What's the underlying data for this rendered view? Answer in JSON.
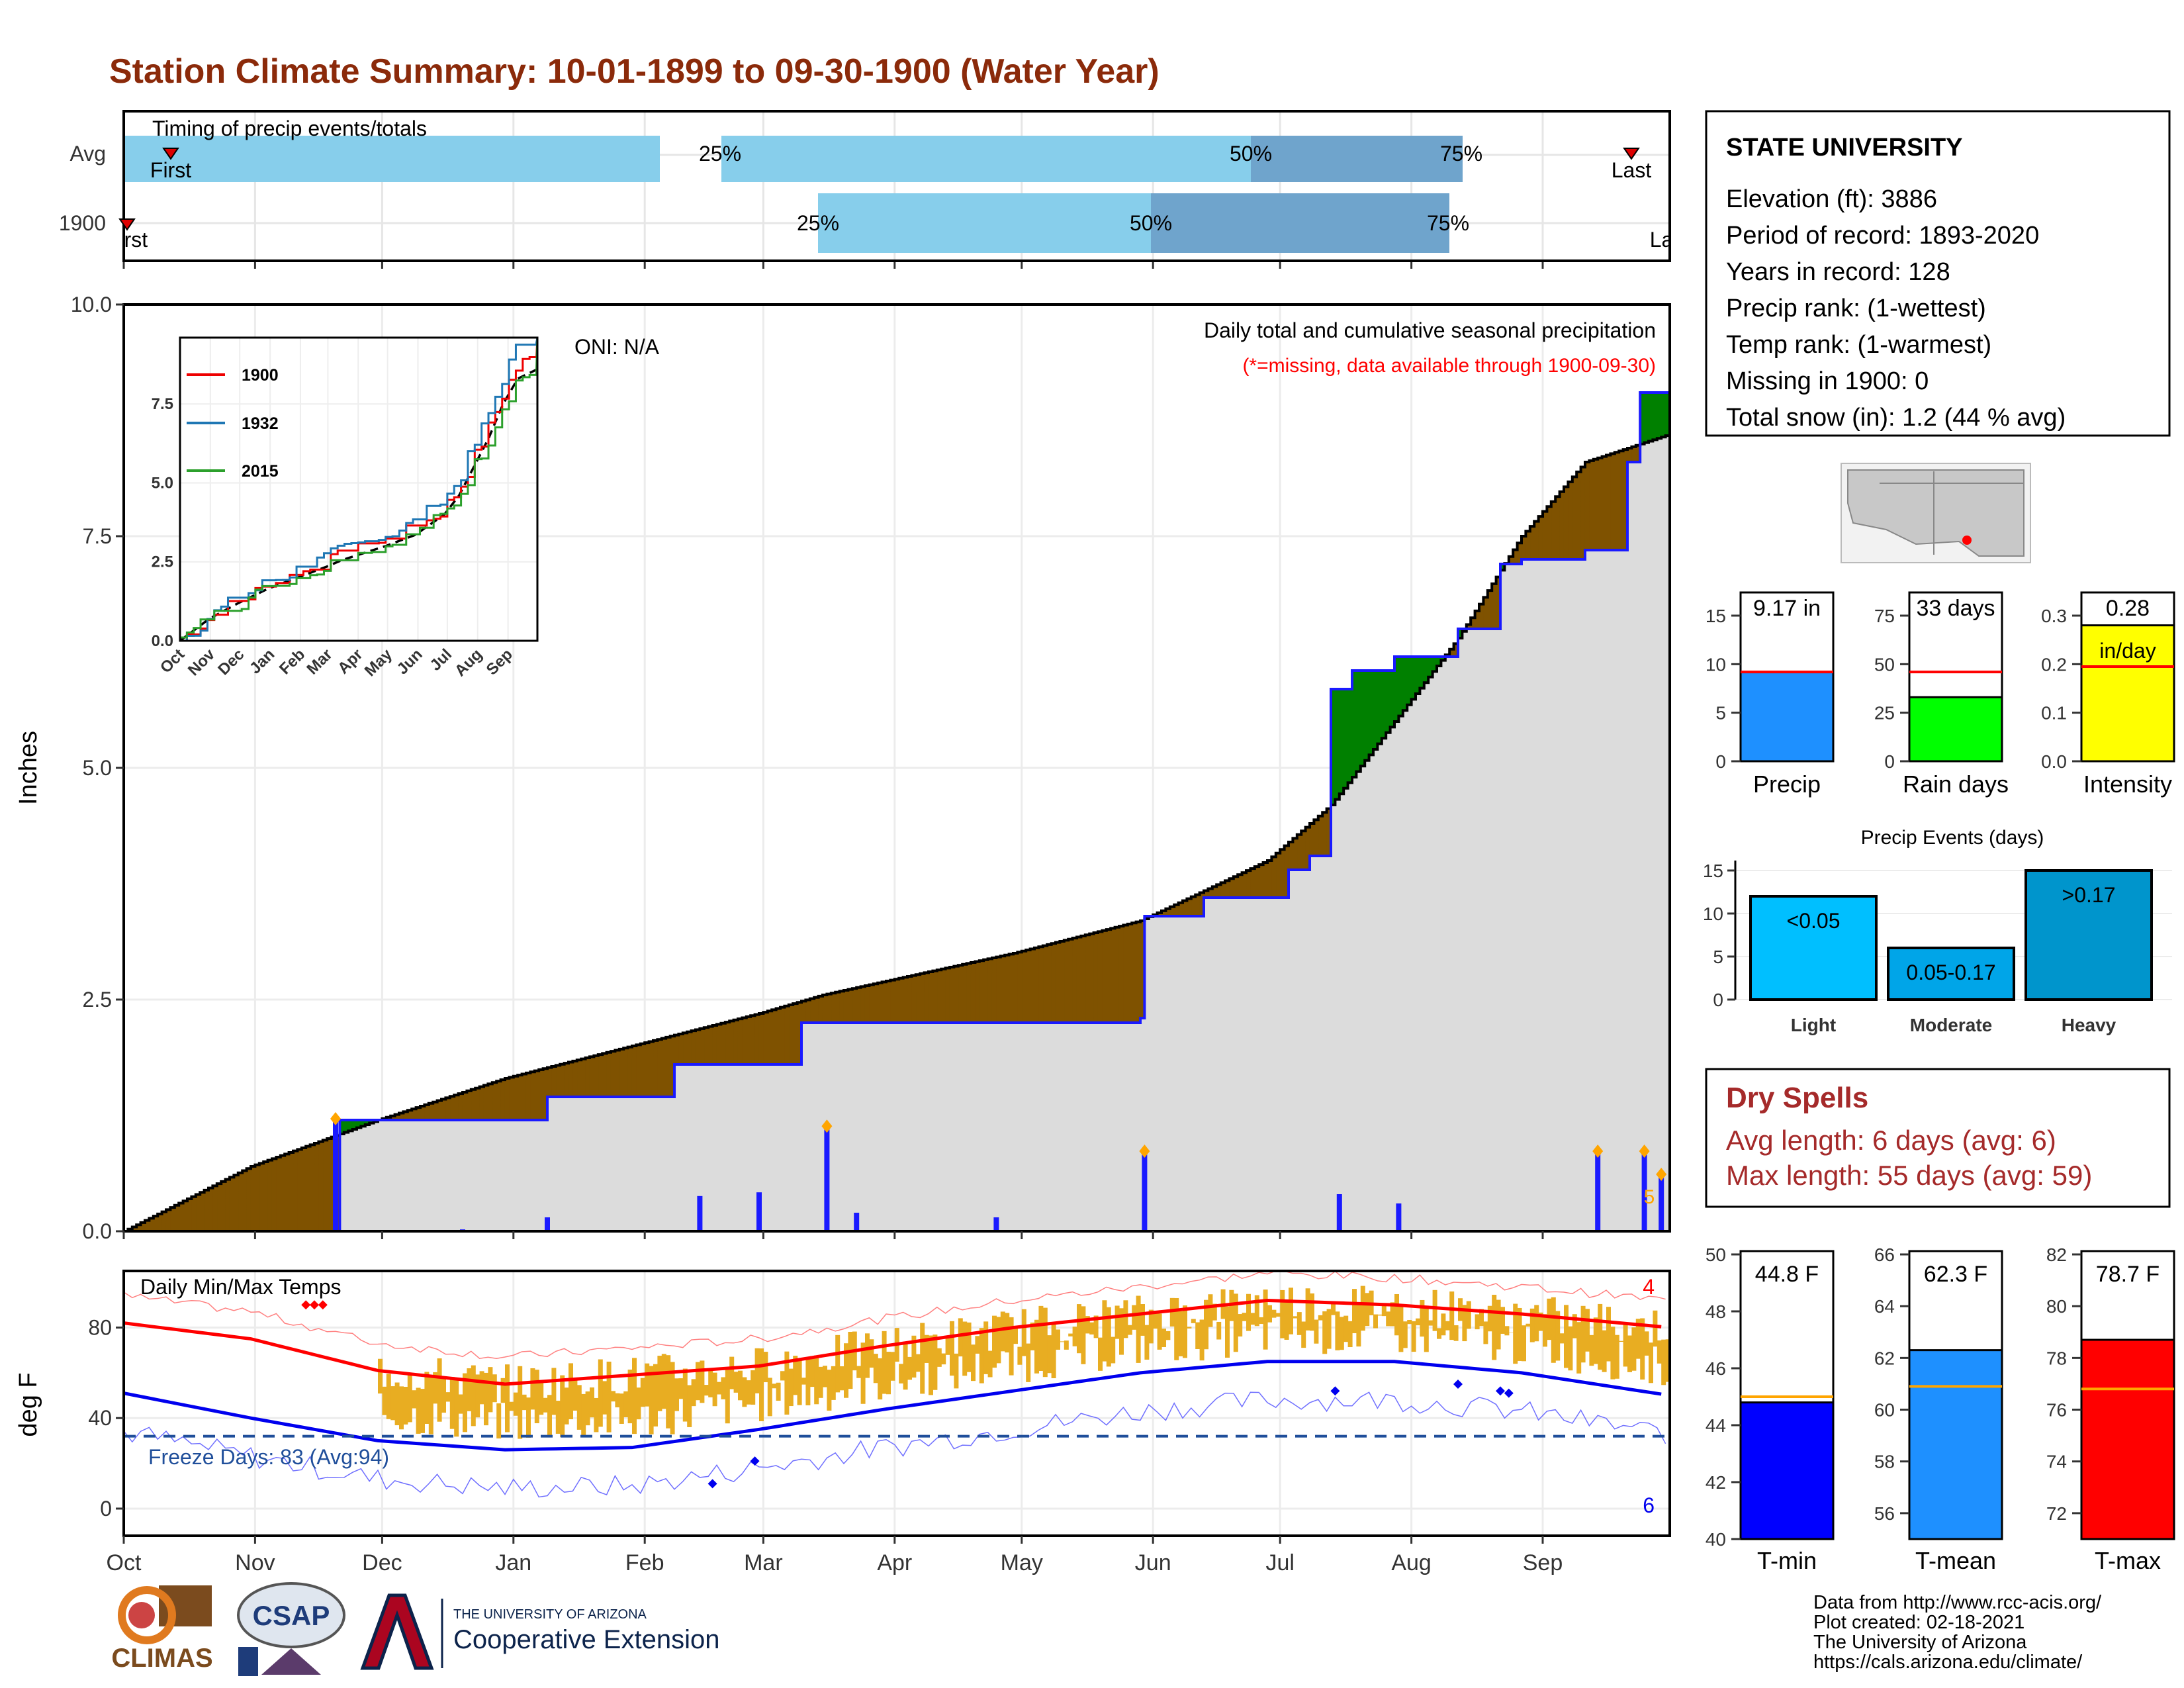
{
  "title": "Station Climate Summary: 10-01-1899 to 09-30-1900 (Water Year)",
  "colors": {
    "title": "#8b2a0a",
    "precip_obs": "#008000",
    "deficit": "#7f5200",
    "avg_fill": "#dcdcdc",
    "daily_bar": "#1a1aff",
    "temp_bar": "#e8ad22",
    "tmax_avg": "#ff0000",
    "tmin_avg": "#0000ee",
    "light_blue": "#87ceeb",
    "mid_blue": "#6fa4cc",
    "dry_spell": "#a52a2a"
  },
  "timing": {
    "label": "Timing of precip events/totals",
    "rows": [
      "Avg",
      "1900"
    ],
    "pct": [
      "25%",
      "50%",
      "75%"
    ],
    "first": "First",
    "last": "Last",
    "first_1900": "First",
    "last_1900": "Last"
  },
  "precip_panel": {
    "ylabel": "Inches",
    "oni": "ONI: N/A",
    "caption": "Daily total and cumulative seasonal precipitation",
    "missing_note": "(*=missing, data available through 1900-09-30)",
    "yticks": [
      "0.0",
      "2.5",
      "5.0",
      "7.5",
      "10.0"
    ],
    "count_label": "5"
  },
  "inset": {
    "series": [
      "1900",
      "1932",
      "2015"
    ],
    "yticks": [
      "0.0",
      "2.5",
      "5.0",
      "7.5"
    ],
    "xticks": [
      "Oct",
      "Nov",
      "Dec",
      "Jan",
      "Feb",
      "Mar",
      "Apr",
      "May",
      "Jun",
      "Jul",
      "Aug",
      "Sep"
    ]
  },
  "temp_panel": {
    "title": "Daily Min/Max Temps",
    "ylabel": "deg F",
    "yticks": [
      "0",
      "40",
      "80"
    ],
    "freeze": "Freeze Days: 83 (Avg:94)",
    "max_count": "4",
    "min_count": "6"
  },
  "months": [
    "Oct",
    "Nov",
    "Dec",
    "Jan",
    "Feb",
    "Mar",
    "Apr",
    "May",
    "Jun",
    "Jul",
    "Aug",
    "Sep"
  ],
  "station": {
    "name": "STATE UNIVERSITY",
    "lines": [
      "Elevation (ft): 3886",
      "Period of record: 1893-2020",
      "Years in record: 128",
      "Precip rank:  (1-wettest)",
      "Temp rank:  (1-warmest)",
      "Missing in 1900: 0",
      "Total snow (in): 1.2 (44 % avg)"
    ]
  },
  "summary_bars": [
    {
      "label": "Precip",
      "value_text": "9.17 in",
      "value": 9.17,
      "avg": 9.2,
      "ymax": 15,
      "ticks": [
        "0",
        "5",
        "10",
        "15"
      ],
      "color": "#1e90ff"
    },
    {
      "label": "Rain days",
      "value_text": "33 days",
      "value": 33,
      "avg": 46,
      "ymax": 75,
      "ticks": [
        "0",
        "25",
        "50",
        "75"
      ],
      "color": "#00ff00"
    },
    {
      "label": "Intensity",
      "value_text": "0.28",
      "value_text2": "in/day",
      "value": 0.28,
      "avg": 0.195,
      "ymax": 0.3,
      "ticks": [
        "0.0",
        "0.1",
        "0.2",
        "0.3"
      ],
      "color": "#ffff00"
    }
  ],
  "events": {
    "title": "Precip Events (days)",
    "categories": [
      "Light",
      "Moderate",
      "Heavy"
    ],
    "bar_labels": [
      "<0.05",
      "0.05-0.17",
      ">0.17"
    ],
    "values": [
      12,
      6,
      15
    ],
    "ticks": [
      "0",
      "5",
      "10",
      "15"
    ],
    "colors": [
      "#00bfff",
      "#00a5e8",
      "#0095cc"
    ]
  },
  "dry_spells": {
    "title": "Dry Spells",
    "avg": "Avg length: 6 days (avg: 6)",
    "max": "Max length: 55 days (avg: 59)"
  },
  "temp_bars": [
    {
      "label": "T-min",
      "value_text": "44.8 F",
      "value": 44.8,
      "avg": 45.0,
      "ymin": 40,
      "ymax": 50,
      "ticks": [
        "40",
        "42",
        "44",
        "46",
        "48",
        "50"
      ],
      "color": "#0000ff"
    },
    {
      "label": "T-mean",
      "value_text": "62.3 F",
      "value": 62.3,
      "avg": 60.9,
      "ymin": 55,
      "ymax": 66,
      "ticks": [
        "56",
        "58",
        "60",
        "62",
        "64",
        "66"
      ],
      "color": "#1e90ff"
    },
    {
      "label": "T-max",
      "value_text": "78.7 F",
      "value": 78.7,
      "avg": 76.8,
      "ymin": 71,
      "ymax": 82,
      "ticks": [
        "72",
        "74",
        "76",
        "78",
        "80",
        "82"
      ],
      "color": "#ff0000"
    }
  ],
  "footer": {
    "lines": [
      "Data from http://www.rcc-acis.org/",
      "Plot created: 02-18-2021",
      "The University of Arizona",
      "https://cals.arizona.edu/climate/"
    ],
    "climas": "CLIMAS",
    "csap": "CSAP",
    "ua_small": "THE UNIVERSITY OF ARIZONA",
    "ua_big": "Cooperative Extension"
  },
  "chart_data": [
    {
      "type": "area",
      "title": "Daily total and cumulative seasonal precipitation",
      "ylabel": "Inches",
      "ylim": [
        0,
        10
      ],
      "x_months": [
        "Oct",
        "Nov",
        "Dec",
        "Jan",
        "Feb",
        "Mar",
        "Apr",
        "May",
        "Jun",
        "Jul",
        "Aug",
        "Sep"
      ],
      "series": [
        {
          "name": "observed cumulative",
          "x": [
            0,
            50,
            51,
            60,
            80,
            100,
            130,
            160,
            165,
            175,
            220,
            240,
            241,
            255,
            275,
            280,
            285,
            290,
            300,
            315,
            325,
            330,
            345,
            355,
            358,
            365
          ],
          "y": [
            0,
            0,
            1.2,
            1.2,
            1.2,
            1.45,
            1.8,
            2.25,
            2.25,
            2.25,
            2.25,
            2.3,
            3.4,
            3.6,
            3.9,
            4.05,
            5.85,
            6.05,
            6.2,
            6.5,
            7.2,
            7.25,
            7.35,
            8.3,
            9.05,
            9.17
          ]
        },
        {
          "name": "average cumulative",
          "x": [
            0,
            30,
            60,
            90,
            120,
            150,
            165,
            180,
            210,
            240,
            270,
            285,
            300,
            315,
            330,
            345,
            365
          ],
          "y": [
            0,
            0.7,
            1.2,
            1.65,
            2.0,
            2.35,
            2.55,
            2.7,
            3.0,
            3.35,
            4.0,
            4.6,
            5.5,
            6.4,
            7.5,
            8.3,
            8.6
          ]
        }
      ],
      "daily_bars": {
        "x": [
          50,
          80,
          100,
          136,
          150,
          166,
          173,
          206,
          241,
          287,
          301,
          348,
          359,
          363
        ],
        "y": [
          1.2,
          0.02,
          0.15,
          0.38,
          0.42,
          1.12,
          0.2,
          0.15,
          0.85,
          0.4,
          0.3,
          0.85,
          0.85,
          0.6
        ]
      }
    },
    {
      "type": "line",
      "title": "Daily Min/Max Temps",
      "ylabel": "deg F",
      "ylim": [
        -12,
        105
      ],
      "series": [
        {
          "name": "avg max",
          "x": [
            0,
            30,
            60,
            90,
            120,
            150,
            180,
            210,
            240,
            270,
            300,
            330,
            365
          ],
          "y": [
            82,
            75,
            61,
            55,
            59,
            63,
            72,
            80,
            86,
            92,
            90,
            86,
            80
          ]
        },
        {
          "name": "avg min",
          "x": [
            0,
            30,
            60,
            90,
            120,
            150,
            180,
            210,
            240,
            270,
            300,
            330,
            365
          ],
          "y": [
            51,
            40,
            30,
            26,
            27,
            35,
            44,
            52,
            60,
            65,
            65,
            60,
            50
          ]
        }
      ]
    }
  ]
}
